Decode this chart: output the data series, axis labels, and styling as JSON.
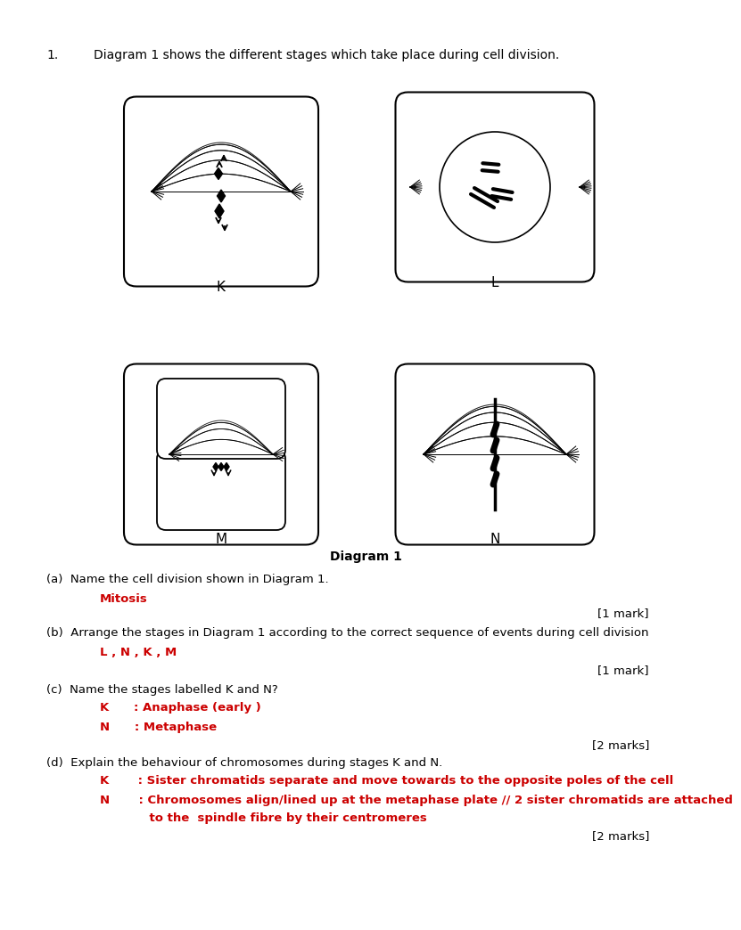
{
  "q1_text_num": "1.",
  "q1_text_body": "Diagram 1 shows the different stages which take place during cell division.",
  "diagram_label": "Diagram 1",
  "qa_label": "(a)  Name the cell division shown in Diagram 1.",
  "qa_answer": "Mitosis",
  "qa_mark": "[1 mark]",
  "qb_label": "(b)  Arrange the stages in Diagram 1 according to the correct sequence of events during cell division",
  "qb_answer": "L , N , K , M",
  "qb_mark": "[1 mark]",
  "qc_label": "(c)  Name the stages labelled K and N?",
  "qc_answer_K": "K      : Anaphase (early )",
  "qc_answer_N": "N      : Metaphase",
  "qc_mark": "[2 marks]",
  "qd_label": "(d)  Explain the behaviour of chromosomes during stages K and N.",
  "qd_answer_K": "K       : Sister chromatids separate and move towards to the opposite poles of the cell",
  "qd_answer_N1": "N       : Chromosomes align/lined up at the metaphase plate // 2 sister chromatids are attached",
  "qd_answer_N2": "            to the  spindle fibre by their centromeres",
  "qd_mark": "[2 marks]",
  "black": "#000000",
  "red": "#cc0000",
  "bg": "#ffffff"
}
